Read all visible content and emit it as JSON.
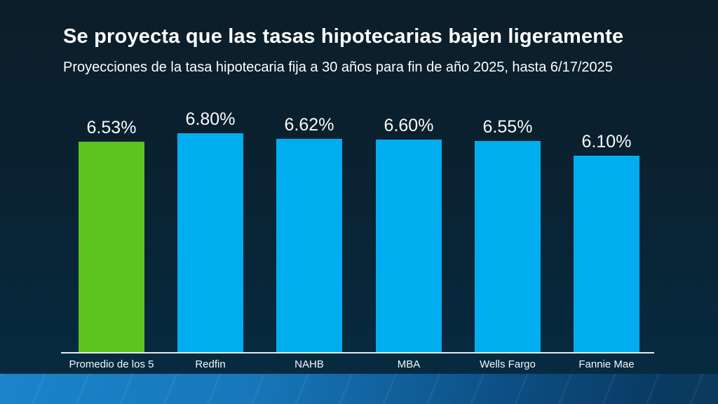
{
  "slide": {
    "title": "Se proyecta que las tasas hipotecarias bajen ligeramente",
    "subtitle": "Proyecciones de la tasa hipotecaria fija a 30 años para fin de año 2025, hasta 6/17/2025"
  },
  "chart_data": {
    "type": "bar",
    "title": "Se proyecta que las tasas hipotecarias bajen ligeramente",
    "subtitle": "Proyecciones de la tasa hipotecaria fija a 30 años para fin de año 2025, hasta 6/17/2025",
    "categories": [
      "Promedio de los 5",
      "Redfin",
      "NAHB",
      "MBA",
      "Wells Fargo",
      "Fannie Mae"
    ],
    "values": [
      6.53,
      6.8,
      6.62,
      6.6,
      6.55,
      6.1
    ],
    "value_labels": [
      "6.53%",
      "6.80%",
      "6.62%",
      "6.60%",
      "6.55%",
      "6.10%"
    ],
    "bar_colors": [
      "#5dc321",
      "#00aeef",
      "#00aeef",
      "#00aeef",
      "#00aeef",
      "#00aeef"
    ],
    "xlabel": "",
    "ylabel": "",
    "ylim": [
      0,
      6.8
    ],
    "grid": false,
    "legend": false
  },
  "colors": {
    "background_top": "#0c1e29",
    "background_bottom": "#062c42",
    "bar_highlight_green": "#5dc321",
    "bar_default_blue": "#00aeef",
    "axis_line": "#e3eaef",
    "text": "#ffffff",
    "bottom_strip_left": "#1b84ca",
    "bottom_strip_right": "#093a61"
  }
}
